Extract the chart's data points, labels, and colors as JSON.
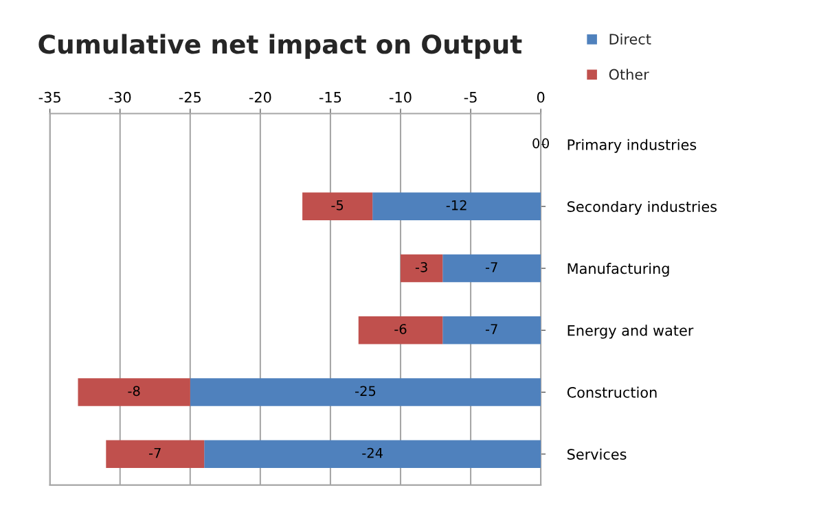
{
  "chart_data": {
    "type": "bar",
    "orientation": "horizontal",
    "stacked": true,
    "title": "Cumulative net impact on Output",
    "categories": [
      "Primary industries",
      "Secondary industries",
      "Manufacturing",
      "Energy and water",
      "Construction",
      "Services"
    ],
    "series": [
      {
        "name": "Direct",
        "color": "#4f81bd",
        "values": [
          0,
          -12,
          -7,
          -7,
          -25,
          -24
        ]
      },
      {
        "name": "Other",
        "color": "#c0504d",
        "values": [
          0,
          -5,
          -3,
          -6,
          -8,
          -7
        ]
      }
    ],
    "xlim": [
      -35,
      0
    ],
    "xticks": [
      -35,
      -30,
      -25,
      -20,
      -15,
      -10,
      -5,
      0
    ],
    "grid": "x",
    "legend": "top right",
    "data_labels": true
  }
}
